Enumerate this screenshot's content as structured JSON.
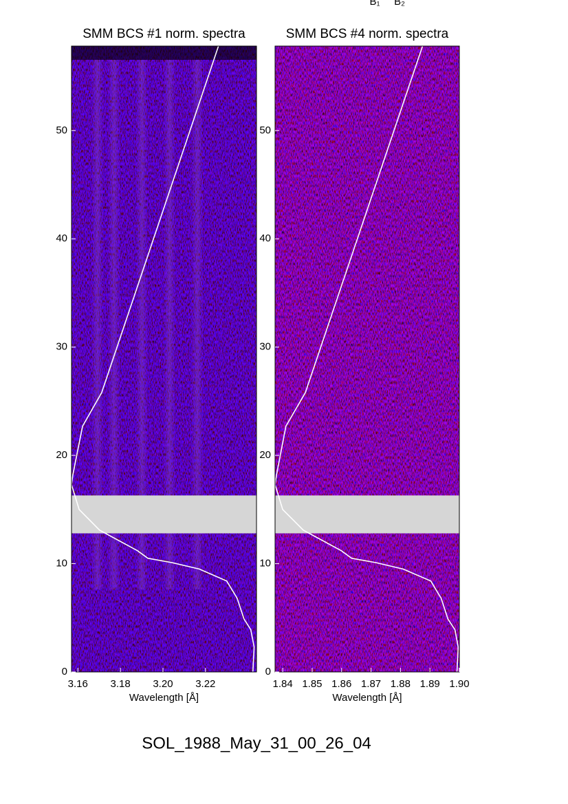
{
  "figure": {
    "labels": [
      "B₁",
      "B₂"
    ],
    "caption": "SOL_1988_May_31_00_26_04"
  },
  "chart_data": [
    {
      "type": "line",
      "title": "SMM BCS #1 norm. spectra",
      "xlabel": "Wavelength [Å]",
      "xlim": [
        3.157,
        3.244
      ],
      "ylim": [
        0,
        57.8
      ],
      "xticks": [
        3.16,
        3.18,
        {
          "value": 3.2,
          "label": "3.20"
        },
        3.22
      ],
      "yticks": [
        0,
        10,
        20,
        30,
        40,
        50
      ],
      "gap": [
        12.8,
        16.3
      ],
      "curve": {
        "color": "#ffffff",
        "x": [
          3.2261,
          3.1712,
          3.1622,
          3.1576,
          3.157,
          3.1606,
          3.1702,
          3.188,
          3.1929,
          3.2042,
          3.2171,
          3.23,
          3.2349,
          3.2381,
          3.2413,
          3.2429,
          3.2423
        ],
        "y": [
          57.8,
          25.8,
          22.7,
          18.2,
          17.3,
          15,
          13.1,
          11.2,
          10.5,
          10.1,
          9.5,
          8.4,
          6.8,
          4.9,
          3.9,
          2.3,
          0
        ]
      }
    },
    {
      "type": "line",
      "title": "SMM BCS #4 norm. spectra",
      "xlabel": "Wavelength [Å]",
      "xlim": [
        1.8374,
        1.9
      ],
      "ylim": [
        0,
        57.8
      ],
      "xticks": [
        1.84,
        1.85,
        1.86,
        1.87,
        1.88,
        1.89,
        {
          "value": 1.9,
          "label": "1.90"
        }
      ],
      "yticks": [
        0,
        10,
        20,
        30,
        40,
        50
      ],
      "gap": [
        12.8,
        16.3
      ],
      "curve": {
        "color": "#ffffff",
        "x": [
          1.8875,
          1.8477,
          1.8411,
          1.8379,
          1.8374,
          1.84,
          1.847,
          1.8599,
          1.8634,
          1.8716,
          1.8809,
          1.8903,
          1.8938,
          1.8961,
          1.8985,
          1.8996,
          1.8992
        ],
        "y": [
          57.8,
          25.8,
          22.7,
          18.2,
          17.3,
          15,
          13.1,
          11.2,
          10.5,
          10.1,
          9.5,
          8.4,
          6.8,
          4.9,
          3.9,
          2.3,
          0
        ]
      }
    }
  ]
}
